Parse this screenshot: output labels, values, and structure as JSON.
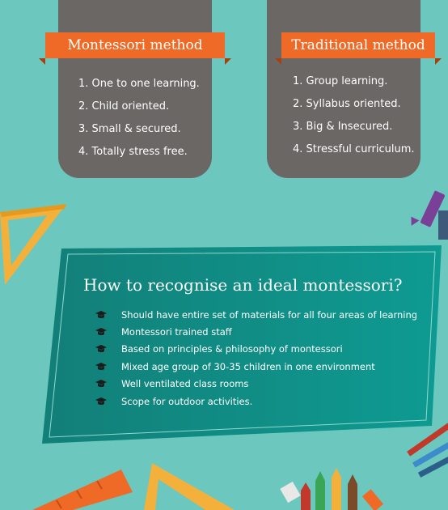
{
  "montessori": {
    "title": "Montessori method",
    "items": [
      "1. One to one learning.",
      "2. Child oriented.",
      "3. Small & secured.",
      "4. Totally stress free."
    ]
  },
  "traditional": {
    "title": "Traditional method",
    "items": [
      "1. Group learning.",
      "2. Syllabus oriented.",
      "3. Big & Insecured.",
      "4. Stressful curriculum."
    ]
  },
  "recognise": {
    "title": "How to recognise an ideal montessori?",
    "bullet_icon": "graduation-cap-icon",
    "items": [
      "Should have entire set of materials for all four areas of learning",
      "Montessori trained staff",
      "Based on principles & philosophy of montessori",
      "Mixed age group of 30-35 children in one environment",
      "Well ventilated class rooms",
      "Scope for outdoor activities."
    ]
  },
  "colors": {
    "background": "#6cc7be",
    "card": "#6a6765",
    "ribbon": "#ef6a26",
    "banner": "#0e8c85"
  }
}
